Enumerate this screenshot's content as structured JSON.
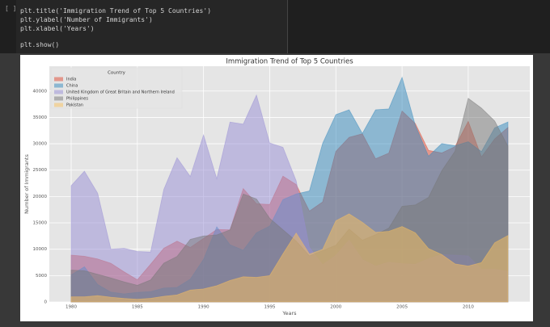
{
  "cell_prompt": "[ ]",
  "code": [
    "plt.title('Immigration Trend of Top 5 Countries')",
    "plt.ylabel('Number of Immigrants')",
    "plt.xlabel('Years')",
    "plt.show()"
  ],
  "chart_data": {
    "type": "area",
    "title": "Immigration Trend of Top 5 Countries",
    "x_label": "Years",
    "y_label": "Number of Immigrants",
    "legend_title": "Country",
    "legend": "upper left",
    "grid": true,
    "alpha": 0.5,
    "x": [
      1980,
      1981,
      1982,
      1983,
      1984,
      1985,
      1986,
      1987,
      1988,
      1989,
      1990,
      1991,
      1992,
      1993,
      1994,
      1995,
      1996,
      1997,
      1998,
      1999,
      2000,
      2001,
      2002,
      2003,
      2004,
      2005,
      2006,
      2007,
      2008,
      2009,
      2010,
      2011,
      2012,
      2013
    ],
    "xlim": [
      1978.35,
      2014.65
    ],
    "xticks": [
      1980,
      1985,
      1990,
      1995,
      2000,
      2005,
      2010
    ],
    "ylim": [
      0,
      44710
    ],
    "yticks": [
      0,
      5000,
      10000,
      15000,
      20000,
      25000,
      30000,
      35000,
      40000
    ],
    "series": [
      {
        "name": "India",
        "color": "#E24A33",
        "values": [
          8880,
          8670,
          8147,
          7338,
          5704,
          4211,
          7150,
          10189,
          11522,
          10343,
          12041,
          13734,
          13673,
          21496,
          18620,
          18489,
          23859,
          22268,
          17241,
          18974,
          28572,
          31223,
          31889,
          27155,
          28235,
          36210,
          33848,
          28742,
          28261,
          29456,
          34235,
          27509,
          30933,
          33087
        ]
      },
      {
        "name": "China",
        "color": "#348ABD",
        "values": [
          5123,
          6682,
          3308,
          1863,
          1527,
          1816,
          1960,
          2643,
          2758,
          4323,
          8076,
          14255,
          10846,
          9817,
          13128,
          14398,
          19415,
          20475,
          21049,
          30069,
          35529,
          36434,
          31961,
          36439,
          36619,
          42584,
          33518,
          27642,
          30037,
          29622,
          30391,
          28502,
          33024,
          34129
        ]
      },
      {
        "name": "United Kingdom of Great Britain and Northern Ireland",
        "color": "#988ED5",
        "values": [
          22045,
          24796,
          20620,
          10015,
          10170,
          9564,
          9470,
          21337,
          27359,
          23795,
          31668,
          23380,
          34123,
          33720,
          39231,
          30145,
          29322,
          22965,
          10367,
          7045,
          8840,
          11728,
          8046,
          6797,
          7533,
          7258,
          7140,
          8216,
          8979,
          8876,
          8724,
          6204,
          6195,
          5827
        ]
      },
      {
        "name": "Philippines",
        "color": "#777777",
        "values": [
          6051,
          5921,
          5249,
          4562,
          3801,
          3150,
          4166,
          7360,
          8639,
          11865,
          12509,
          12718,
          13670,
          20479,
          19532,
          15864,
          13692,
          11549,
          8735,
          9734,
          10763,
          13836,
          11707,
          12758,
          14004,
          18139,
          18400,
          19837,
          24887,
          28573,
          38617,
          36765,
          34315,
          29544
        ]
      },
      {
        "name": "Pakistan",
        "color": "#FBC15E",
        "values": [
          978,
          972,
          1201,
          900,
          668,
          514,
          691,
          1072,
          1334,
          2261,
          2470,
          3079,
          4071,
          4777,
          4666,
          4994,
          9125,
          13073,
          9068,
          9979,
          15400,
          16708,
          15110,
          13205,
          13399,
          14314,
          13127,
          10124,
          8994,
          7217,
          6811,
          7468,
          11227,
          12603
        ]
      }
    ]
  }
}
